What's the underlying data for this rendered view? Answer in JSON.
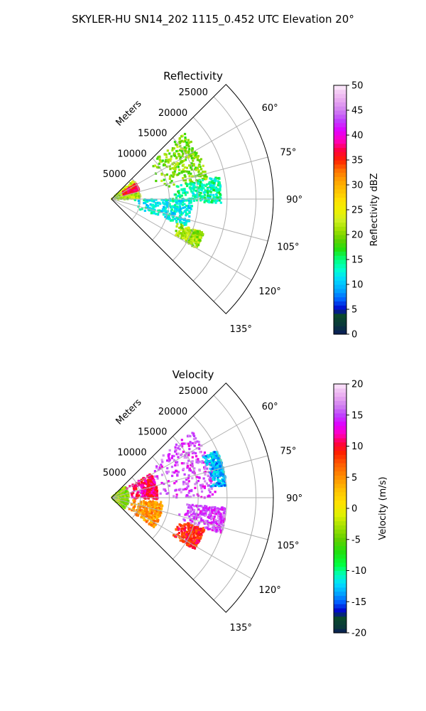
{
  "suptitle": "SKYLER-HU  SN14_202  1115_0.452 UTC Elevation 20°",
  "panels": [
    {
      "title": "Reflectivity",
      "range_axis_label": "Meters",
      "range_ticks": [
        "5000",
        "10000",
        "15000",
        "20000",
        "25000"
      ],
      "azimuth_ticks": [
        "60°",
        "75°",
        "90°",
        "105°",
        "120°",
        "135°"
      ],
      "colorbar": {
        "label": "Reflectivity dBZ",
        "min": 0,
        "max": 50,
        "ticks": [
          "0",
          "5",
          "10",
          "15",
          "20",
          "25",
          "30",
          "35",
          "40",
          "45",
          "50"
        ],
        "stops": [
          {
            "v": 0,
            "c": "#0a1a5a"
          },
          {
            "v": 2,
            "c": "#0a3a3a"
          },
          {
            "v": 4,
            "c": "#0a4a2a"
          },
          {
            "v": 5,
            "c": "#0000c8"
          },
          {
            "v": 7,
            "c": "#0060ff"
          },
          {
            "v": 9,
            "c": "#00aaff"
          },
          {
            "v": 11,
            "c": "#00d8ff"
          },
          {
            "v": 13,
            "c": "#00ffd0"
          },
          {
            "v": 15,
            "c": "#00ff80"
          },
          {
            "v": 17,
            "c": "#20e010"
          },
          {
            "v": 19,
            "c": "#60d000"
          },
          {
            "v": 21,
            "c": "#a0e000"
          },
          {
            "v": 23,
            "c": "#d0f020"
          },
          {
            "v": 25,
            "c": "#f0f000"
          },
          {
            "v": 27,
            "c": "#ffe000"
          },
          {
            "v": 29,
            "c": "#ffc000"
          },
          {
            "v": 31,
            "c": "#ffa000"
          },
          {
            "v": 33,
            "c": "#ff7000"
          },
          {
            "v": 35,
            "c": "#ff2000"
          },
          {
            "v": 37,
            "c": "#ff0040"
          },
          {
            "v": 39,
            "c": "#ff00c0"
          },
          {
            "v": 41,
            "c": "#e000ff"
          },
          {
            "v": 43,
            "c": "#c040ff"
          },
          {
            "v": 45,
            "c": "#d080f0"
          },
          {
            "v": 47,
            "c": "#e8a8f0"
          },
          {
            "v": 49,
            "c": "#f4d0f4"
          },
          {
            "v": 50,
            "c": "#fff0ff"
          }
        ]
      }
    },
    {
      "title": "Velocity",
      "range_axis_label": "Meters",
      "range_ticks": [
        "5000",
        "10000",
        "15000",
        "20000",
        "25000"
      ],
      "azimuth_ticks": [
        "60°",
        "75°",
        "90°",
        "105°",
        "120°",
        "135°"
      ],
      "colorbar": {
        "label": "Velocity (m/s)",
        "min": -20,
        "max": 20,
        "ticks": [
          "-20",
          "-15",
          "-10",
          "-5",
          "0",
          "5",
          "10",
          "15",
          "20"
        ],
        "stops": [
          {
            "v": -20,
            "c": "#0a1a5a"
          },
          {
            "v": -19,
            "c": "#0a3a3a"
          },
          {
            "v": -17.5,
            "c": "#0a4a2a"
          },
          {
            "v": -16.5,
            "c": "#0000c8"
          },
          {
            "v": -15,
            "c": "#0060ff"
          },
          {
            "v": -13.5,
            "c": "#00aaff"
          },
          {
            "v": -12,
            "c": "#00e0ff"
          },
          {
            "v": -10.5,
            "c": "#00ffb0"
          },
          {
            "v": -9,
            "c": "#00ff40"
          },
          {
            "v": -7,
            "c": "#20e010"
          },
          {
            "v": -5,
            "c": "#60d000"
          },
          {
            "v": -3,
            "c": "#a0e000"
          },
          {
            "v": -1,
            "c": "#e0f000"
          },
          {
            "v": 1,
            "c": "#ffe000"
          },
          {
            "v": 3,
            "c": "#ffc000"
          },
          {
            "v": 5,
            "c": "#ff9000"
          },
          {
            "v": 7,
            "c": "#ff6000"
          },
          {
            "v": 9,
            "c": "#ff2000"
          },
          {
            "v": 10.5,
            "c": "#ff0040"
          },
          {
            "v": 12,
            "c": "#ff00c0"
          },
          {
            "v": 13.5,
            "c": "#e000ff"
          },
          {
            "v": 15,
            "c": "#c040ff"
          },
          {
            "v": 16.5,
            "c": "#d080f0"
          },
          {
            "v": 18,
            "c": "#e8a8f0"
          },
          {
            "v": 19.5,
            "c": "#f4d0f4"
          },
          {
            "v": 20,
            "c": "#fff0ff"
          }
        ]
      }
    }
  ],
  "chart_data": [
    {
      "type": "heatmap",
      "projection": "polar-sector",
      "title": "Reflectivity",
      "azimuth_range_deg": [
        45,
        135
      ],
      "radius_range_m": [
        0,
        28000
      ],
      "grid": true,
      "zlabel": "Reflectivity dBZ",
      "zlim": [
        0,
        50
      ],
      "echoes": [
        {
          "az": [
            50,
            90
          ],
          "r": [
            0,
            5000
          ],
          "value": 22
        },
        {
          "az": [
            58,
            72
          ],
          "r": [
            2000,
            5000
          ],
          "value": 36
        },
        {
          "az": [
            48,
            78
          ],
          "r": [
            8000,
            17000
          ],
          "value": 20
        },
        {
          "az": [
            78,
            92
          ],
          "r": [
            10000,
            19000
          ],
          "value": 14
        },
        {
          "az": [
            90,
            110
          ],
          "r": [
            4000,
            14000
          ],
          "value": 12
        },
        {
          "az": [
            110,
            120
          ],
          "r": [
            12000,
            17000
          ],
          "value": 21
        }
      ]
    },
    {
      "type": "heatmap",
      "projection": "polar-sector",
      "title": "Velocity",
      "azimuth_range_deg": [
        45,
        135
      ],
      "radius_range_m": [
        0,
        28000
      ],
      "grid": true,
      "zlabel": "Velocity (m/s)",
      "zlim": [
        -20,
        20
      ],
      "echoes": [
        {
          "az": [
            50,
            130
          ],
          "r": [
            0,
            3000
          ],
          "value": -4
        },
        {
          "az": [
            58,
            92
          ],
          "r": [
            3000,
            8000
          ],
          "value": 11
        },
        {
          "az": [
            50,
            90
          ],
          "r": [
            8000,
            18000
          ],
          "value": 15
        },
        {
          "az": [
            66,
            84
          ],
          "r": [
            17000,
            20000
          ],
          "value": -13
        },
        {
          "az": [
            95,
            125
          ],
          "r": [
            3000,
            9000
          ],
          "value": 5
        },
        {
          "az": [
            108,
            122
          ],
          "r": [
            12000,
            17000
          ],
          "value": 9
        },
        {
          "az": [
            95,
            108
          ],
          "r": [
            12000,
            20000
          ],
          "value": 15
        }
      ]
    }
  ]
}
